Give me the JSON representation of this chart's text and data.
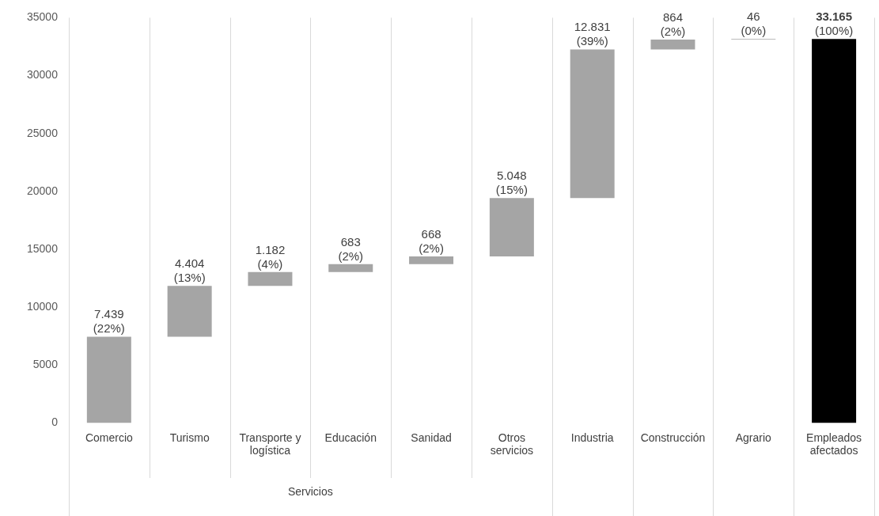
{
  "chart_data": {
    "type": "bar",
    "categories": [
      "Comercio",
      "Turismo",
      "Transporte y logística",
      "Educación",
      "Sanidad",
      "Otros servicios",
      "Industria",
      "Construcción",
      "Agrario",
      "Empleados afectados"
    ],
    "values": [
      7439,
      4404,
      1182,
      683,
      668,
      5048,
      12831,
      864,
      46,
      33165
    ],
    "base": [
      0,
      7439,
      11843,
      13025,
      13708,
      14376,
      19424,
      32255,
      33119,
      0
    ],
    "colors": [
      "#a5a5a5",
      "#a5a5a5",
      "#a5a5a5",
      "#a5a5a5",
      "#a5a5a5",
      "#a5a5a5",
      "#a5a5a5",
      "#a5a5a5",
      "#a5a5a5",
      "#000000"
    ],
    "value_labels": [
      "7.439\n(22%)",
      "4.404\n(13%)",
      "1.182\n(4%)",
      "683\n(2%)",
      "668\n(2%)",
      "5.048\n(15%)",
      "12.831\n(39%)",
      "864\n(2%)",
      "46\n(0%)",
      "33.165\n(100%)"
    ],
    "ylim": [
      0,
      35000
    ],
    "yticks": [
      0,
      5000,
      10000,
      15000,
      20000,
      25000,
      30000,
      35000
    ],
    "grid": "x",
    "legend": false,
    "annotations": [
      "Servicios"
    ]
  }
}
